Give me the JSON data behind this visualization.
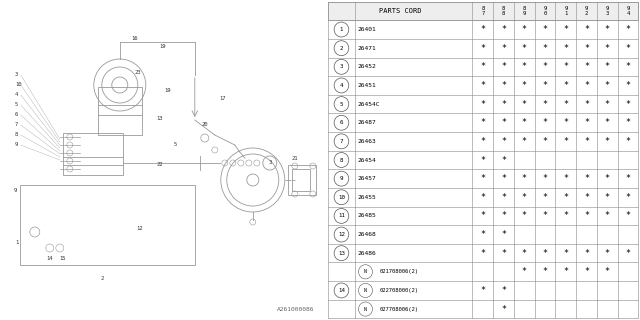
{
  "table_header_col": "PARTS CORD",
  "year_headers": [
    "8\n7",
    "8\n8",
    "8\n9",
    "9\n0",
    "9\n1",
    "9\n2",
    "9\n3",
    "9\n4"
  ],
  "rows": [
    {
      "num": "1",
      "circle": true,
      "part": "26401",
      "cols": [
        1,
        1,
        1,
        1,
        1,
        1,
        1,
        1
      ]
    },
    {
      "num": "2",
      "circle": true,
      "part": "26471",
      "cols": [
        1,
        1,
        1,
        1,
        1,
        1,
        1,
        1
      ]
    },
    {
      "num": "3",
      "circle": true,
      "part": "26452",
      "cols": [
        1,
        1,
        1,
        1,
        1,
        1,
        1,
        1
      ]
    },
    {
      "num": "4",
      "circle": true,
      "part": "26451",
      "cols": [
        1,
        1,
        1,
        1,
        1,
        1,
        1,
        1
      ]
    },
    {
      "num": "5",
      "circle": true,
      "part": "26454C",
      "cols": [
        1,
        1,
        1,
        1,
        1,
        1,
        1,
        1
      ]
    },
    {
      "num": "6",
      "circle": true,
      "part": "26487",
      "cols": [
        1,
        1,
        1,
        1,
        1,
        1,
        1,
        1
      ]
    },
    {
      "num": "7",
      "circle": true,
      "part": "26463",
      "cols": [
        1,
        1,
        1,
        1,
        1,
        1,
        1,
        1
      ]
    },
    {
      "num": "8",
      "circle": true,
      "part": "26454",
      "cols": [
        1,
        1,
        0,
        0,
        0,
        0,
        0,
        0
      ]
    },
    {
      "num": "9",
      "circle": true,
      "part": "26457",
      "cols": [
        1,
        1,
        1,
        1,
        1,
        1,
        1,
        1
      ]
    },
    {
      "num": "10",
      "circle": true,
      "part": "26455",
      "cols": [
        1,
        1,
        1,
        1,
        1,
        1,
        1,
        1
      ]
    },
    {
      "num": "11",
      "circle": true,
      "part": "26485",
      "cols": [
        1,
        1,
        1,
        1,
        1,
        1,
        1,
        1
      ]
    },
    {
      "num": "12",
      "circle": true,
      "part": "26468",
      "cols": [
        1,
        1,
        0,
        0,
        0,
        0,
        0,
        0
      ]
    },
    {
      "num": "13",
      "circle": true,
      "part": "26486",
      "cols": [
        1,
        1,
        1,
        1,
        1,
        1,
        1,
        1
      ]
    },
    {
      "num": "",
      "circle": false,
      "part": "021708006(2)",
      "cols": [
        0,
        0,
        1,
        1,
        1,
        1,
        1,
        0
      ],
      "n_circle": true
    },
    {
      "num": "14",
      "circle": true,
      "part": "022708000(2)",
      "cols": [
        1,
        1,
        0,
        0,
        0,
        0,
        0,
        0
      ],
      "n_circle": true
    },
    {
      "num": "",
      "circle": false,
      "part": "027708006(2)",
      "cols": [
        0,
        1,
        0,
        0,
        0,
        0,
        0,
        0
      ],
      "n_circle": true
    }
  ],
  "watermark": "A261000086",
  "bg_color": "#ffffff",
  "line_color": "#888888",
  "diagram_color": "#999999"
}
